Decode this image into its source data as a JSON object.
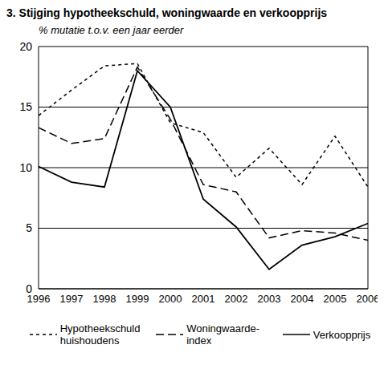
{
  "chart_data": {
    "type": "line",
    "title": "3. Stijging hypotheekschuld, woningwaarde en verkoopprijs",
    "y_label": "% mutatie t.o.v. een jaar eerder",
    "categories": [
      "1996",
      "1997",
      "1998",
      "1999",
      "2000",
      "2001",
      "2002",
      "2003",
      "2004",
      "2005",
      "2006"
    ],
    "series": [
      {
        "name": "Hypotheekschuld huishoudens",
        "color": "#000000",
        "line_style": "dotted",
        "values": [
          14.3,
          16.4,
          18.4,
          18.6,
          13.7,
          12.9,
          9.2,
          11.6,
          8.6,
          12.6,
          8.4
        ]
      },
      {
        "name": "Woningwaarde-index",
        "color": "#000000",
        "line_style": "dashed",
        "values": [
          13.3,
          12.0,
          12.4,
          18.3,
          14.0,
          8.6,
          8.0,
          4.2,
          4.8,
          4.6,
          4.0
        ]
      },
      {
        "name": "Verkoopprijs",
        "color": "#000000",
        "line_style": "solid",
        "values": [
          10.1,
          8.8,
          8.4,
          18.0,
          15.0,
          7.4,
          5.1,
          1.6,
          3.6,
          4.3,
          5.4
        ]
      }
    ],
    "ylim": [
      0,
      20
    ],
    "yticks": [
      0,
      5,
      10,
      15,
      20
    ],
    "grid": true,
    "legend": "bottom"
  }
}
